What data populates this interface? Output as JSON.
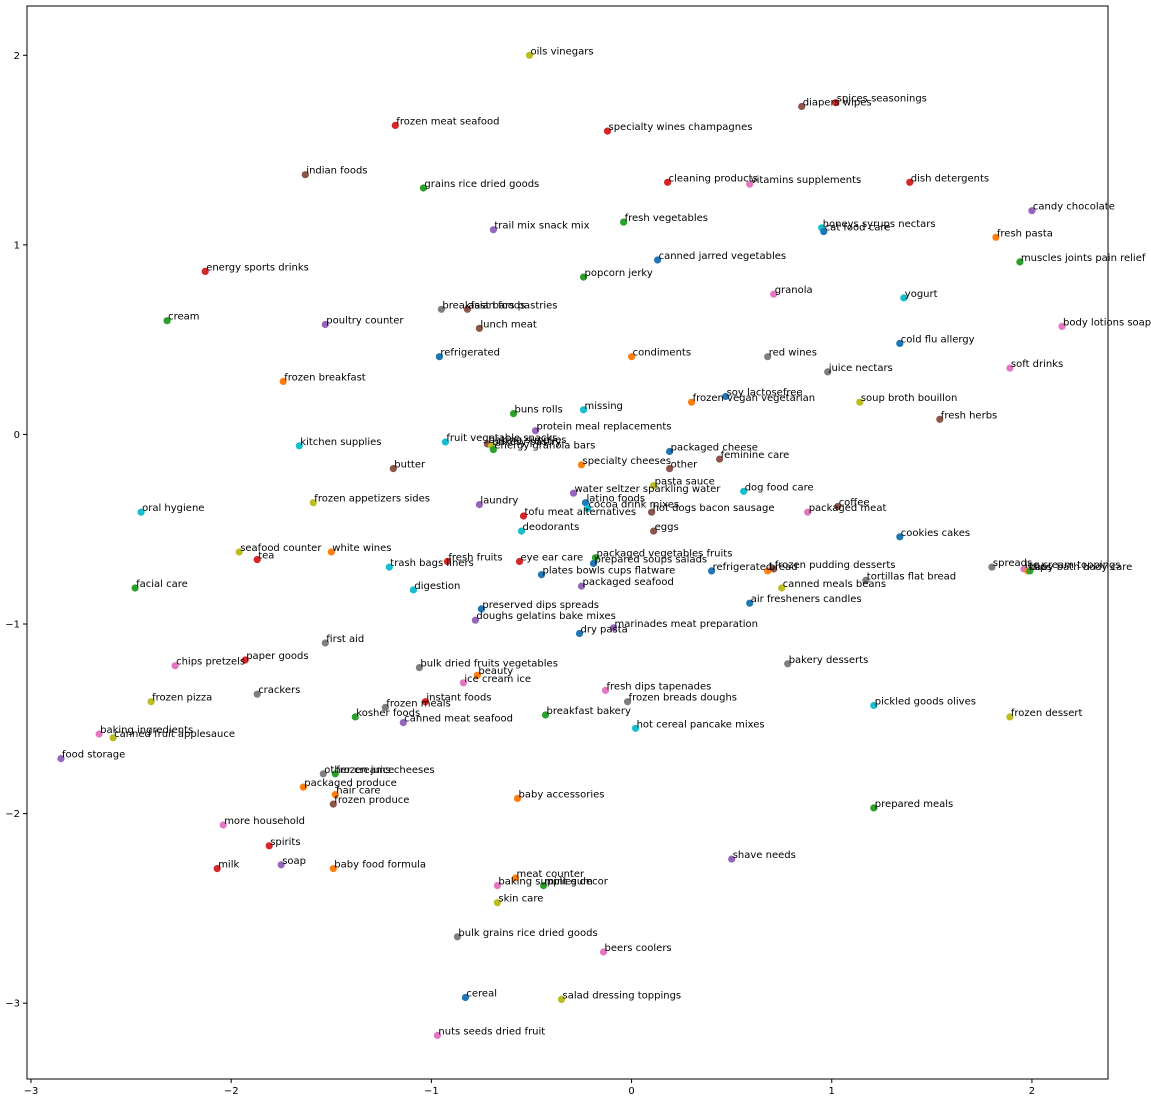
{
  "chart_data": {
    "type": "scatter",
    "title": "",
    "xlabel": "",
    "ylabel": "",
    "xlim": [
      -3.02,
      2.38
    ],
    "ylim": [
      -3.4,
      2.26
    ],
    "xticks": [
      -3,
      -2,
      -1,
      0,
      1,
      2
    ],
    "yticks": [
      -3,
      -2,
      -1,
      0,
      1,
      2
    ],
    "xtick_labels": [
      "−3",
      "−2",
      "−1",
      "0",
      "1",
      "2"
    ],
    "ytick_labels": [
      "−3",
      "−2",
      "−1",
      "0",
      "1",
      "2"
    ],
    "grid": false,
    "legend": "none",
    "palette": [
      "#1f77b4",
      "#ff7f0e",
      "#2ca02c",
      "#d62728",
      "#9467bd",
      "#8c564b",
      "#e377c2",
      "#7f7f7f",
      "#bcbd22",
      "#17becf"
    ],
    "points": [
      {
        "label": "oils vinegars",
        "x": -0.51,
        "y": 2.0,
        "c": 8
      },
      {
        "label": "frozen meat seafood",
        "x": -1.18,
        "y": 1.63,
        "c": 3
      },
      {
        "label": "specialty wines champagnes",
        "x": -0.12,
        "y": 1.6,
        "c": 3
      },
      {
        "label": "diapers wipes",
        "x": 0.85,
        "y": 1.73,
        "c": 5
      },
      {
        "label": "spices seasonings",
        "x": 1.02,
        "y": 1.75,
        "c": 3
      },
      {
        "label": "indian foods",
        "x": -1.63,
        "y": 1.37,
        "c": 5
      },
      {
        "label": "grains rice dried goods",
        "x": -1.04,
        "y": 1.3,
        "c": 2
      },
      {
        "label": "cleaning products",
        "x": 0.18,
        "y": 1.33,
        "c": 3
      },
      {
        "label": "vitamins supplements",
        "x": 0.59,
        "y": 1.32,
        "c": 6
      },
      {
        "label": "dish detergents",
        "x": 1.39,
        "y": 1.33,
        "c": 3
      },
      {
        "label": "candy chocolate",
        "x": 2.0,
        "y": 1.18,
        "c": 4
      },
      {
        "label": "fresh vegetables",
        "x": -0.04,
        "y": 1.12,
        "c": 2
      },
      {
        "label": "trail mix snack mix",
        "x": -0.69,
        "y": 1.08,
        "c": 4
      },
      {
        "label": "honeys syrups nectars",
        "x": 0.95,
        "y": 1.09,
        "c": 9
      },
      {
        "label": "cat food care",
        "x": 0.96,
        "y": 1.07,
        "c": 0
      },
      {
        "label": "fresh pasta",
        "x": 1.82,
        "y": 1.04,
        "c": 1
      },
      {
        "label": "canned jarred vegetables",
        "x": 0.13,
        "y": 0.92,
        "c": 0
      },
      {
        "label": "muscles joints pain relief",
        "x": 1.94,
        "y": 0.91,
        "c": 2
      },
      {
        "label": "energy sports drinks",
        "x": -2.13,
        "y": 0.86,
        "c": 3
      },
      {
        "label": "popcorn jerky",
        "x": -0.24,
        "y": 0.83,
        "c": 2
      },
      {
        "label": "granola",
        "x": 0.71,
        "y": 0.74,
        "c": 6
      },
      {
        "label": "yogurt",
        "x": 1.36,
        "y": 0.72,
        "c": 9
      },
      {
        "label": "breakfast bars pastries",
        "x": -0.95,
        "y": 0.66,
        "c": 7
      },
      {
        "label": "asian foods",
        "x": -0.82,
        "y": 0.66,
        "c": 5
      },
      {
        "label": "cream",
        "x": -2.32,
        "y": 0.6,
        "c": 2
      },
      {
        "label": "poultry counter",
        "x": -1.53,
        "y": 0.58,
        "c": 4
      },
      {
        "label": "lunch meat",
        "x": -0.76,
        "y": 0.56,
        "c": 5
      },
      {
        "label": "body lotions soap",
        "x": 2.15,
        "y": 0.57,
        "c": 6
      },
      {
        "label": "cold flu allergy",
        "x": 1.34,
        "y": 0.48,
        "c": 0
      },
      {
        "label": "refrigerated",
        "x": -0.96,
        "y": 0.41,
        "c": 0
      },
      {
        "label": "condiments",
        "x": 0.0,
        "y": 0.41,
        "c": 1
      },
      {
        "label": "red wines",
        "x": 0.68,
        "y": 0.41,
        "c": 7
      },
      {
        "label": "soft drinks",
        "x": 1.89,
        "y": 0.35,
        "c": 6
      },
      {
        "label": "juice nectars",
        "x": 0.98,
        "y": 0.33,
        "c": 7
      },
      {
        "label": "frozen breakfast",
        "x": -1.74,
        "y": 0.28,
        "c": 1
      },
      {
        "label": "soy lactosefree",
        "x": 0.47,
        "y": 0.2,
        "c": 0
      },
      {
        "label": "frozen vegan vegetarian",
        "x": 0.3,
        "y": 0.17,
        "c": 1
      },
      {
        "label": "soup broth bouillon",
        "x": 1.14,
        "y": 0.17,
        "c": 8
      },
      {
        "label": "missing",
        "x": -0.24,
        "y": 0.13,
        "c": 9
      },
      {
        "label": "buns rolls",
        "x": -0.59,
        "y": 0.11,
        "c": 2
      },
      {
        "label": "fresh herbs",
        "x": 1.54,
        "y": 0.08,
        "c": 5
      },
      {
        "label": "protein meal replacements",
        "x": -0.48,
        "y": 0.02,
        "c": 4
      },
      {
        "label": "kitchen supplies",
        "x": -1.66,
        "y": -0.06,
        "c": 9
      },
      {
        "label": "fruit vegetable snacks",
        "x": -0.93,
        "y": -0.04,
        "c": 9
      },
      {
        "label": "baking supplies",
        "x": -0.72,
        "y": -0.05,
        "c": 5
      },
      {
        "label": "bakery pastry",
        "x": -0.7,
        "y": -0.06,
        "c": 8
      },
      {
        "label": "energy granola bars",
        "x": -0.69,
        "y": -0.08,
        "c": 2
      },
      {
        "label": "packaged cheese",
        "x": 0.19,
        "y": -0.09,
        "c": 0
      },
      {
        "label": "feminine care",
        "x": 0.44,
        "y": -0.13,
        "c": 5
      },
      {
        "label": "butter",
        "x": -1.19,
        "y": -0.18,
        "c": 5
      },
      {
        "label": "specialty cheeses",
        "x": -0.25,
        "y": -0.16,
        "c": 1
      },
      {
        "label": "other",
        "x": 0.19,
        "y": -0.18,
        "c": 5
      },
      {
        "label": "pasta sauce",
        "x": 0.11,
        "y": -0.27,
        "c": 8
      },
      {
        "label": "water seltzer sparkling water",
        "x": -0.29,
        "y": -0.31,
        "c": 4
      },
      {
        "label": "dog food care",
        "x": 0.56,
        "y": -0.3,
        "c": 9
      },
      {
        "label": "frozen appetizers sides",
        "x": -1.59,
        "y": -0.36,
        "c": 8
      },
      {
        "label": "laundry",
        "x": -0.76,
        "y": -0.37,
        "c": 4
      },
      {
        "label": "latino foods",
        "x": -0.23,
        "y": -0.36,
        "c": 0
      },
      {
        "label": "cocoa drink mixes",
        "x": -0.22,
        "y": -0.39,
        "c": 9
      },
      {
        "label": "coffee",
        "x": 1.03,
        "y": -0.38,
        "c": 5
      },
      {
        "label": "oral hygiene",
        "x": -2.45,
        "y": -0.41,
        "c": 9
      },
      {
        "label": "hot dogs bacon sausage",
        "x": 0.1,
        "y": -0.41,
        "c": 5
      },
      {
        "label": "packaged meat",
        "x": 0.88,
        "y": -0.41,
        "c": 6
      },
      {
        "label": "tofu meat alternatives",
        "x": -0.54,
        "y": -0.43,
        "c": 3
      },
      {
        "label": "deodorants",
        "x": -0.55,
        "y": -0.51,
        "c": 9
      },
      {
        "label": "eggs",
        "x": 0.11,
        "y": -0.51,
        "c": 5
      },
      {
        "label": "cookies cakes",
        "x": 1.34,
        "y": -0.54,
        "c": 0
      },
      {
        "label": "seafood counter",
        "x": -1.96,
        "y": -0.62,
        "c": 8
      },
      {
        "label": "white wines",
        "x": -1.5,
        "y": -0.62,
        "c": 1
      },
      {
        "label": "tea",
        "x": -1.87,
        "y": -0.66,
        "c": 3
      },
      {
        "label": "packaged vegetables fruits",
        "x": -0.18,
        "y": -0.65,
        "c": 2
      },
      {
        "label": "fresh fruits",
        "x": -0.92,
        "y": -0.67,
        "c": 3
      },
      {
        "label": "trash bags liners",
        "x": -1.21,
        "y": -0.7,
        "c": 9
      },
      {
        "label": "eye ear care",
        "x": -0.56,
        "y": -0.67,
        "c": 3
      },
      {
        "label": "prepared soups salads",
        "x": -0.19,
        "y": -0.68,
        "c": 0
      },
      {
        "label": "refrigerated",
        "x": 0.4,
        "y": -0.72,
        "c": 0
      },
      {
        "label": "bread",
        "x": 0.68,
        "y": -0.72,
        "c": 1
      },
      {
        "label": "frozen pudding desserts",
        "x": 0.71,
        "y": -0.71,
        "c": 5
      },
      {
        "label": "spreads",
        "x": 1.8,
        "y": -0.7,
        "c": 7
      },
      {
        "label": "ice cream toppings",
        "x": 1.96,
        "y": -0.71,
        "c": 6
      },
      {
        "label": "baby bath body care",
        "x": 1.98,
        "y": -0.72,
        "c": 1
      },
      {
        "label": "dips",
        "x": 1.99,
        "y": -0.72,
        "c": 2
      },
      {
        "label": "plates bowls cups flatware",
        "x": -0.45,
        "y": -0.74,
        "c": 0
      },
      {
        "label": "tortillas flat bread",
        "x": 1.17,
        "y": -0.77,
        "c": 7
      },
      {
        "label": "facial care",
        "x": -2.48,
        "y": -0.81,
        "c": 2
      },
      {
        "label": "digestion",
        "x": -1.09,
        "y": -0.82,
        "c": 9
      },
      {
        "label": "packaged seafood",
        "x": -0.25,
        "y": -0.8,
        "c": 4
      },
      {
        "label": "canned meals beans",
        "x": 0.75,
        "y": -0.81,
        "c": 8
      },
      {
        "label": "air fresheners candles",
        "x": 0.59,
        "y": -0.89,
        "c": 0
      },
      {
        "label": "preserved dips spreads",
        "x": -0.75,
        "y": -0.92,
        "c": 0
      },
      {
        "label": "doughs gelatins bake mixes",
        "x": -0.78,
        "y": -0.98,
        "c": 4
      },
      {
        "label": "marinades meat preparation",
        "x": -0.09,
        "y": -1.02,
        "c": 4
      },
      {
        "label": "dry pasta",
        "x": -0.26,
        "y": -1.05,
        "c": 0
      },
      {
        "label": "first aid",
        "x": -1.53,
        "y": -1.1,
        "c": 7
      },
      {
        "label": "paper goods",
        "x": -1.93,
        "y": -1.19,
        "c": 3
      },
      {
        "label": "chips pretzels",
        "x": -2.28,
        "y": -1.22,
        "c": 6
      },
      {
        "label": "bulk dried fruits vegetables",
        "x": -1.06,
        "y": -1.23,
        "c": 7
      },
      {
        "label": "bakery desserts",
        "x": 0.78,
        "y": -1.21,
        "c": 7
      },
      {
        "label": "beauty",
        "x": -0.77,
        "y": -1.27,
        "c": 1
      },
      {
        "label": "ice cream ice",
        "x": -0.84,
        "y": -1.31,
        "c": 6
      },
      {
        "label": "fresh dips tapenades",
        "x": -0.13,
        "y": -1.35,
        "c": 6
      },
      {
        "label": "crackers",
        "x": -1.87,
        "y": -1.37,
        "c": 7
      },
      {
        "label": "frozen pizza",
        "x": -2.4,
        "y": -1.41,
        "c": 8
      },
      {
        "label": "instant foods",
        "x": -1.03,
        "y": -1.41,
        "c": 3
      },
      {
        "label": "frozen breads doughs",
        "x": -0.02,
        "y": -1.41,
        "c": 7
      },
      {
        "label": "frozen meals",
        "x": -1.23,
        "y": -1.44,
        "c": 7
      },
      {
        "label": "pickled goods olives",
        "x": 1.21,
        "y": -1.43,
        "c": 9
      },
      {
        "label": "kosher foods",
        "x": -1.38,
        "y": -1.49,
        "c": 2
      },
      {
        "label": "breakfast bakery",
        "x": -0.43,
        "y": -1.48,
        "c": 2
      },
      {
        "label": "frozen dessert",
        "x": 1.89,
        "y": -1.49,
        "c": 8
      },
      {
        "label": "canned meat seafood",
        "x": -1.14,
        "y": -1.52,
        "c": 4
      },
      {
        "label": "hot cereal pancake mixes",
        "x": 0.02,
        "y": -1.55,
        "c": 9
      },
      {
        "label": "baking ingredients",
        "x": -2.66,
        "y": -1.58,
        "c": 6
      },
      {
        "label": "canned fruit applesauce",
        "x": -2.59,
        "y": -1.6,
        "c": 8
      },
      {
        "label": "food storage",
        "x": -2.85,
        "y": -1.71,
        "c": 4
      },
      {
        "label": "other creams cheeses",
        "x": -1.54,
        "y": -1.79,
        "c": 7
      },
      {
        "label": "frozen juice",
        "x": -1.48,
        "y": -1.79,
        "c": 2
      },
      {
        "label": "packaged produce",
        "x": -1.64,
        "y": -1.86,
        "c": 1
      },
      {
        "label": "hair care",
        "x": -1.48,
        "y": -1.9,
        "c": 1
      },
      {
        "label": "frozen produce",
        "x": -1.49,
        "y": -1.95,
        "c": 5
      },
      {
        "label": "baby accessories",
        "x": -0.57,
        "y": -1.92,
        "c": 1
      },
      {
        "label": "prepared meals",
        "x": 1.21,
        "y": -1.97,
        "c": 2
      },
      {
        "label": "more household",
        "x": -2.04,
        "y": -2.06,
        "c": 6
      },
      {
        "label": "spirits",
        "x": -1.81,
        "y": -2.17,
        "c": 3
      },
      {
        "label": "shave needs",
        "x": 0.5,
        "y": -2.24,
        "c": 4
      },
      {
        "label": "milk",
        "x": -2.07,
        "y": -2.29,
        "c": 3
      },
      {
        "label": "soap",
        "x": -1.75,
        "y": -2.27,
        "c": 4
      },
      {
        "label": "baby food formula",
        "x": -1.49,
        "y": -2.29,
        "c": 1
      },
      {
        "label": "meat counter",
        "x": -0.58,
        "y": -2.34,
        "c": 1
      },
      {
        "label": "mint gum",
        "x": -0.44,
        "y": -2.38,
        "c": 2
      },
      {
        "label": "baking supplies decor",
        "x": -0.67,
        "y": -2.38,
        "c": 6
      },
      {
        "label": "skin care",
        "x": -0.67,
        "y": -2.47,
        "c": 8
      },
      {
        "label": "bulk grains rice dried goods",
        "x": -0.87,
        "y": -2.65,
        "c": 7
      },
      {
        "label": "beers coolers",
        "x": -0.14,
        "y": -2.73,
        "c": 6
      },
      {
        "label": "cereal",
        "x": -0.83,
        "y": -2.97,
        "c": 0
      },
      {
        "label": "salad dressing toppings",
        "x": -0.35,
        "y": -2.98,
        "c": 8
      },
      {
        "label": "nuts seeds dried fruit",
        "x": -0.97,
        "y": -3.17,
        "c": 6
      }
    ]
  }
}
